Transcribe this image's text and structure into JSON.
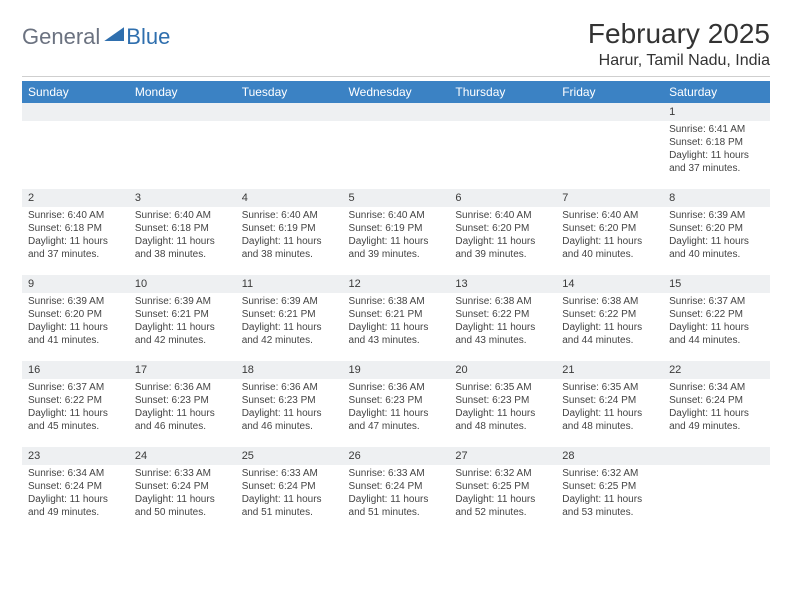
{
  "logo": {
    "part1": "General",
    "part2": "Blue"
  },
  "title": "February 2025",
  "location": "Harur, Tamil Nadu, India",
  "colors": {
    "header_bg": "#3b82c4",
    "header_fg": "#ffffff",
    "daynum_bg": "#eef0f2",
    "accent": "#2f6fae"
  },
  "weekdays": [
    "Sunday",
    "Monday",
    "Tuesday",
    "Wednesday",
    "Thursday",
    "Friday",
    "Saturday"
  ],
  "weeks": [
    [
      {
        "empty": true
      },
      {
        "empty": true
      },
      {
        "empty": true
      },
      {
        "empty": true
      },
      {
        "empty": true
      },
      {
        "empty": true
      },
      {
        "day": "1",
        "sunrise": "Sunrise: 6:41 AM",
        "sunset": "Sunset: 6:18 PM",
        "daylight": "Daylight: 11 hours and 37 minutes."
      }
    ],
    [
      {
        "day": "2",
        "sunrise": "Sunrise: 6:40 AM",
        "sunset": "Sunset: 6:18 PM",
        "daylight": "Daylight: 11 hours and 37 minutes."
      },
      {
        "day": "3",
        "sunrise": "Sunrise: 6:40 AM",
        "sunset": "Sunset: 6:18 PM",
        "daylight": "Daylight: 11 hours and 38 minutes."
      },
      {
        "day": "4",
        "sunrise": "Sunrise: 6:40 AM",
        "sunset": "Sunset: 6:19 PM",
        "daylight": "Daylight: 11 hours and 38 minutes."
      },
      {
        "day": "5",
        "sunrise": "Sunrise: 6:40 AM",
        "sunset": "Sunset: 6:19 PM",
        "daylight": "Daylight: 11 hours and 39 minutes."
      },
      {
        "day": "6",
        "sunrise": "Sunrise: 6:40 AM",
        "sunset": "Sunset: 6:20 PM",
        "daylight": "Daylight: 11 hours and 39 minutes."
      },
      {
        "day": "7",
        "sunrise": "Sunrise: 6:40 AM",
        "sunset": "Sunset: 6:20 PM",
        "daylight": "Daylight: 11 hours and 40 minutes."
      },
      {
        "day": "8",
        "sunrise": "Sunrise: 6:39 AM",
        "sunset": "Sunset: 6:20 PM",
        "daylight": "Daylight: 11 hours and 40 minutes."
      }
    ],
    [
      {
        "day": "9",
        "sunrise": "Sunrise: 6:39 AM",
        "sunset": "Sunset: 6:20 PM",
        "daylight": "Daylight: 11 hours and 41 minutes."
      },
      {
        "day": "10",
        "sunrise": "Sunrise: 6:39 AM",
        "sunset": "Sunset: 6:21 PM",
        "daylight": "Daylight: 11 hours and 42 minutes."
      },
      {
        "day": "11",
        "sunrise": "Sunrise: 6:39 AM",
        "sunset": "Sunset: 6:21 PM",
        "daylight": "Daylight: 11 hours and 42 minutes."
      },
      {
        "day": "12",
        "sunrise": "Sunrise: 6:38 AM",
        "sunset": "Sunset: 6:21 PM",
        "daylight": "Daylight: 11 hours and 43 minutes."
      },
      {
        "day": "13",
        "sunrise": "Sunrise: 6:38 AM",
        "sunset": "Sunset: 6:22 PM",
        "daylight": "Daylight: 11 hours and 43 minutes."
      },
      {
        "day": "14",
        "sunrise": "Sunrise: 6:38 AM",
        "sunset": "Sunset: 6:22 PM",
        "daylight": "Daylight: 11 hours and 44 minutes."
      },
      {
        "day": "15",
        "sunrise": "Sunrise: 6:37 AM",
        "sunset": "Sunset: 6:22 PM",
        "daylight": "Daylight: 11 hours and 44 minutes."
      }
    ],
    [
      {
        "day": "16",
        "sunrise": "Sunrise: 6:37 AM",
        "sunset": "Sunset: 6:22 PM",
        "daylight": "Daylight: 11 hours and 45 minutes."
      },
      {
        "day": "17",
        "sunrise": "Sunrise: 6:36 AM",
        "sunset": "Sunset: 6:23 PM",
        "daylight": "Daylight: 11 hours and 46 minutes."
      },
      {
        "day": "18",
        "sunrise": "Sunrise: 6:36 AM",
        "sunset": "Sunset: 6:23 PM",
        "daylight": "Daylight: 11 hours and 46 minutes."
      },
      {
        "day": "19",
        "sunrise": "Sunrise: 6:36 AM",
        "sunset": "Sunset: 6:23 PM",
        "daylight": "Daylight: 11 hours and 47 minutes."
      },
      {
        "day": "20",
        "sunrise": "Sunrise: 6:35 AM",
        "sunset": "Sunset: 6:23 PM",
        "daylight": "Daylight: 11 hours and 48 minutes."
      },
      {
        "day": "21",
        "sunrise": "Sunrise: 6:35 AM",
        "sunset": "Sunset: 6:24 PM",
        "daylight": "Daylight: 11 hours and 48 minutes."
      },
      {
        "day": "22",
        "sunrise": "Sunrise: 6:34 AM",
        "sunset": "Sunset: 6:24 PM",
        "daylight": "Daylight: 11 hours and 49 minutes."
      }
    ],
    [
      {
        "day": "23",
        "sunrise": "Sunrise: 6:34 AM",
        "sunset": "Sunset: 6:24 PM",
        "daylight": "Daylight: 11 hours and 49 minutes."
      },
      {
        "day": "24",
        "sunrise": "Sunrise: 6:33 AM",
        "sunset": "Sunset: 6:24 PM",
        "daylight": "Daylight: 11 hours and 50 minutes."
      },
      {
        "day": "25",
        "sunrise": "Sunrise: 6:33 AM",
        "sunset": "Sunset: 6:24 PM",
        "daylight": "Daylight: 11 hours and 51 minutes."
      },
      {
        "day": "26",
        "sunrise": "Sunrise: 6:33 AM",
        "sunset": "Sunset: 6:24 PM",
        "daylight": "Daylight: 11 hours and 51 minutes."
      },
      {
        "day": "27",
        "sunrise": "Sunrise: 6:32 AM",
        "sunset": "Sunset: 6:25 PM",
        "daylight": "Daylight: 11 hours and 52 minutes."
      },
      {
        "day": "28",
        "sunrise": "Sunrise: 6:32 AM",
        "sunset": "Sunset: 6:25 PM",
        "daylight": "Daylight: 11 hours and 53 minutes."
      },
      {
        "empty": true
      }
    ]
  ]
}
